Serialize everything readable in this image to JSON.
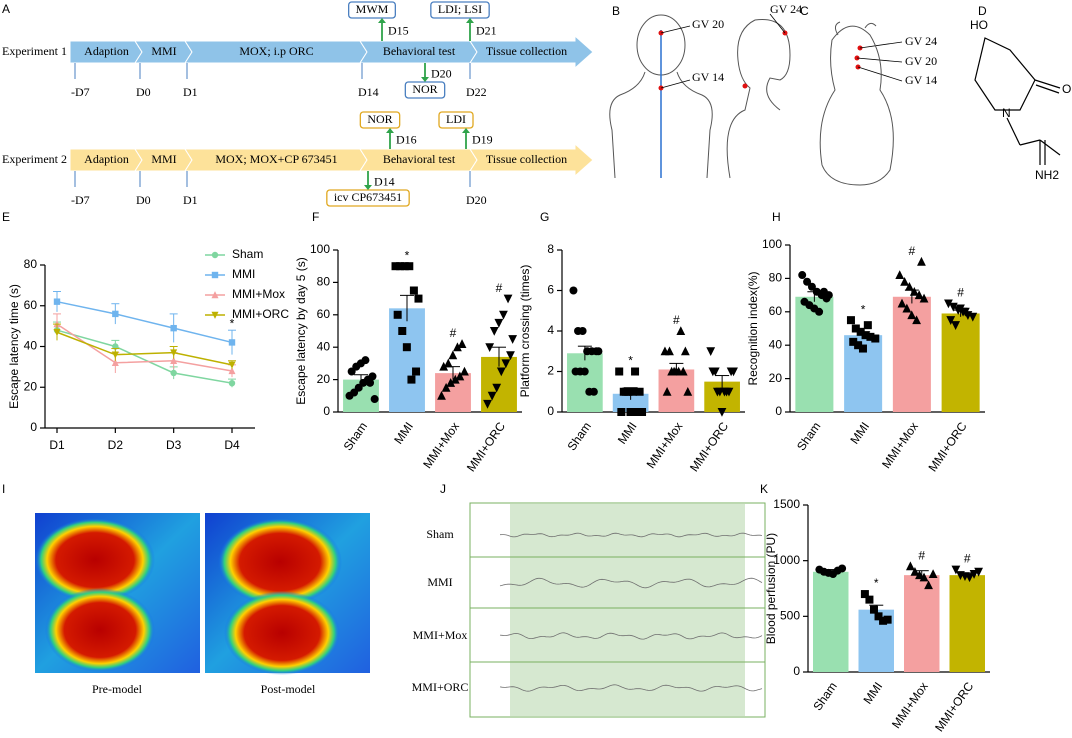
{
  "panel_labels": [
    "A",
    "B",
    "C",
    "D",
    "E",
    "F",
    "G",
    "H",
    "I",
    "J",
    "K"
  ],
  "timelines": [
    {
      "label": "Experiment 1",
      "stages": [
        "Adaption",
        "MMI",
        "MOX; i.p ORC",
        "Behavioral test",
        "Tissue collection"
      ],
      "days": [
        "-D7",
        "D0",
        "D1",
        "D14",
        "D22"
      ],
      "boxes": [
        {
          "text": "MWM",
          "day": "D15"
        },
        {
          "text": "LDI; LSI",
          "day": "D21"
        },
        {
          "text": "NOR",
          "day": "D20"
        }
      ]
    },
    {
      "label": "Experiment 2",
      "stages": [
        "Adaption",
        "MMI",
        "MOX; MOX+CP 673451",
        "Behavioral test",
        "Tissue collection"
      ],
      "days": [
        "-D7",
        "D0",
        "D1",
        "D20"
      ],
      "boxes": [
        {
          "text": "NOR",
          "day": "D16"
        },
        {
          "text": "LDI",
          "day": "D19"
        },
        {
          "text": "icv CP673451",
          "day": "D14"
        }
      ]
    }
  ],
  "acupoints_b": [
    "GV 20",
    "GV 24",
    "GV 14"
  ],
  "acupoints_c": [
    "GV 24",
    "GV 20",
    "GV 14"
  ],
  "molecule": [
    "HO",
    "O",
    "N",
    "NH2"
  ],
  "images": [
    "Pre-model",
    "Post-model"
  ],
  "traces": [
    "Sham",
    "MMI",
    "MMI+Mox",
    "MMI+ORC"
  ],
  "chart_data": [
    {
      "type": "line",
      "categories": [
        "D1",
        "D2",
        "D3",
        "D4"
      ],
      "ylabel": "Escape latency time (s)",
      "ylim": [
        0,
        80
      ],
      "yticks": [
        0,
        20,
        40,
        60,
        80
      ],
      "annotation": "*",
      "annotation_at": "D4",
      "series": [
        {
          "name": "Sham",
          "color": "#7fd6a0",
          "marker": "circle",
          "values": [
            48,
            40,
            27,
            22
          ],
          "errors": [
            4,
            3,
            3,
            2
          ]
        },
        {
          "name": "MMI",
          "color": "#6fb4ee",
          "marker": "square",
          "values": [
            62,
            56,
            49,
            42
          ],
          "errors": [
            5,
            5,
            7,
            6
          ]
        },
        {
          "name": "MMI+Mox",
          "color": "#f4a0a0",
          "marker": "triangle",
          "values": [
            51,
            32,
            33,
            28
          ],
          "errors": [
            5,
            5,
            4,
            3
          ]
        },
        {
          "name": "MMI+ORC",
          "color": "#bdb100",
          "marker": "triangle-down",
          "values": [
            47,
            36,
            37,
            31
          ],
          "errors": [
            4,
            3,
            3,
            2
          ]
        }
      ]
    },
    {
      "type": "bar",
      "categories": [
        "Sham",
        "MMI",
        "MMI+Mox",
        "MMI+ORC"
      ],
      "ylabel": "Escape latency by day 5 (s)",
      "ylim": [
        0,
        100
      ],
      "yticks": [
        0,
        20,
        40,
        60,
        80,
        100
      ],
      "colors": [
        "#99e0b0",
        "#8ec5f0",
        "#f4a0a0",
        "#c2b400"
      ],
      "markers": [
        "circle",
        "square",
        "triangle",
        "triangle-down"
      ],
      "values": [
        20,
        64,
        24,
        34
      ],
      "errors": [
        3,
        8,
        4,
        6
      ],
      "annotations": [
        null,
        "*",
        "#",
        "#"
      ],
      "points": [
        [
          10,
          12,
          15,
          18,
          20,
          22,
          25,
          28,
          30,
          32,
          18,
          8
        ],
        [
          90,
          90,
          90,
          90,
          75,
          70,
          60,
          50,
          40,
          20,
          25
        ],
        [
          10,
          15,
          18,
          20,
          22,
          25,
          28,
          30,
          35,
          40,
          42
        ],
        [
          5,
          10,
          15,
          25,
          30,
          35,
          40,
          50,
          55,
          60,
          70,
          45
        ]
      ]
    },
    {
      "type": "bar",
      "categories": [
        "Sham",
        "MMI",
        "MMI+Mox",
        "MMI+ORC"
      ],
      "ylabel": "Platform crossing  (times)",
      "ylim": [
        0,
        8
      ],
      "yticks": [
        0,
        2,
        4,
        6,
        8
      ],
      "colors": [
        "#99e0b0",
        "#8ec5f0",
        "#f4a0a0",
        "#c2b400"
      ],
      "markers": [
        "circle",
        "square",
        "triangle",
        "triangle-down"
      ],
      "values": [
        2.9,
        0.9,
        2.1,
        1.5
      ],
      "errors": [
        0.35,
        0.3,
        0.3,
        0.3
      ],
      "annotations": [
        null,
        "*",
        "#",
        null
      ],
      "points": [
        [
          6,
          4,
          4,
          3,
          3,
          3,
          2,
          2,
          2,
          1,
          1,
          3
        ],
        [
          2,
          1,
          1,
          1,
          0,
          0,
          0,
          1,
          0,
          2,
          1
        ],
        [
          3,
          3,
          2,
          2,
          2,
          1,
          1,
          2,
          2,
          4,
          3
        ],
        [
          3,
          2,
          1,
          1,
          1,
          2,
          2,
          1,
          0,
          1,
          2
        ]
      ]
    },
    {
      "type": "bar",
      "categories": [
        "Sham",
        "MMI",
        "MMI+Mox",
        "MMI+ORC"
      ],
      "ylabel": "Recognition index(%)",
      "ylim": [
        0,
        100
      ],
      "yticks": [
        0,
        20,
        40,
        60,
        80,
        100
      ],
      "colors": [
        "#99e0b0",
        "#8ec5f0",
        "#f4a0a0",
        "#c2b400"
      ],
      "markers": [
        "circle",
        "square",
        "triangle",
        "triangle-down"
      ],
      "values": [
        69,
        46,
        69,
        59
      ],
      "errors": [
        3,
        2,
        4,
        2
      ],
      "annotations": [
        null,
        "*",
        "#",
        "#"
      ],
      "points": [
        [
          82,
          78,
          75,
          72,
          70,
          68,
          66,
          64,
          62,
          60,
          72,
          70
        ],
        [
          55,
          50,
          48,
          46,
          45,
          44,
          42,
          40,
          38,
          52
        ],
        [
          82,
          78,
          75,
          72,
          70,
          68,
          65,
          62,
          58,
          55,
          90
        ],
        [
          65,
          63,
          61,
          60,
          58,
          57,
          55,
          52,
          62,
          60
        ]
      ]
    },
    {
      "type": "bar",
      "categories": [
        "Sham",
        "MMI",
        "MMI+Mox",
        "MMI+ORC"
      ],
      "ylabel": "Blood perfusion (PU)",
      "ylim": [
        0,
        1500
      ],
      "yticks": [
        0,
        500,
        1000,
        1500
      ],
      "colors": [
        "#99e0b0",
        "#8ec5f0",
        "#f4a0a0",
        "#c2b400"
      ],
      "markers": [
        "circle",
        "square",
        "triangle",
        "triangle-down"
      ],
      "values": [
        900,
        560,
        870,
        870
      ],
      "errors": [
        20,
        40,
        40,
        20
      ],
      "annotations": [
        null,
        "*",
        "#",
        "#"
      ],
      "points": [
        [
          920,
          900,
          890,
          880,
          910,
          930
        ],
        [
          700,
          650,
          560,
          500,
          460,
          470
        ],
        [
          950,
          900,
          870,
          850,
          780,
          880
        ],
        [
          920,
          870,
          860,
          850,
          880,
          900
        ]
      ]
    }
  ]
}
